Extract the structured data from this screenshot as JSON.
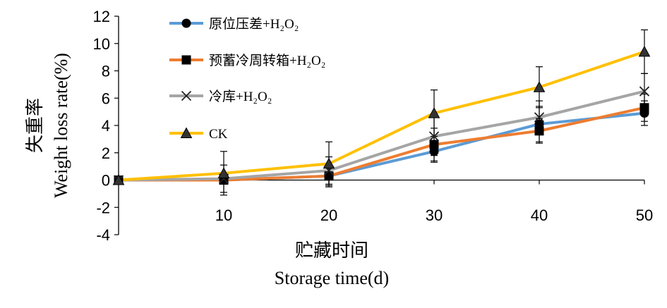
{
  "chart_data": {
    "type": "line",
    "x": [
      0,
      10,
      20,
      30,
      40,
      50
    ],
    "xticks": [
      10,
      20,
      30,
      40,
      50
    ],
    "xlim": [
      0,
      50
    ],
    "ylim": [
      -4,
      12
    ],
    "yticks": [
      -4,
      -2,
      0,
      2,
      4,
      6,
      8,
      10,
      12
    ],
    "xlabel_cn": "贮藏时间",
    "xlabel_en": "Storage time(d)",
    "ylabel_cn": "失重率",
    "ylabel_en": "Weight loss rate(%)",
    "legend_position": "top-left",
    "series": [
      {
        "name": "原位压差+H₂O₂",
        "color": "#5B9BD5",
        "marker": "circle",
        "values": [
          0,
          0,
          0.3,
          2.1,
          4.1,
          4.9
        ],
        "errors": [
          0,
          0,
          0.3,
          0.8,
          1.3,
          0.9
        ]
      },
      {
        "name": "预蓄冷周转箱+H₂O₂",
        "color": "#ED7D31",
        "marker": "square",
        "values": [
          0,
          0,
          0.3,
          2.6,
          3.6,
          5.3
        ],
        "errors": [
          0,
          0,
          0.8,
          1.2,
          0.9,
          1.0
        ]
      },
      {
        "name": "冷库+H₂O₂",
        "color": "#A5A5A5",
        "marker": "x",
        "values": [
          0,
          0.1,
          0.7,
          3.2,
          4.6,
          6.5
        ],
        "errors": [
          0,
          1.0,
          1.0,
          1.4,
          1.2,
          1.3
        ]
      },
      {
        "name": "CK",
        "color": "#FFC000",
        "marker": "triangle",
        "values": [
          0,
          0.5,
          1.2,
          4.9,
          6.8,
          9.4
        ],
        "errors": [
          0,
          1.6,
          1.6,
          1.7,
          1.5,
          1.6
        ]
      }
    ]
  }
}
